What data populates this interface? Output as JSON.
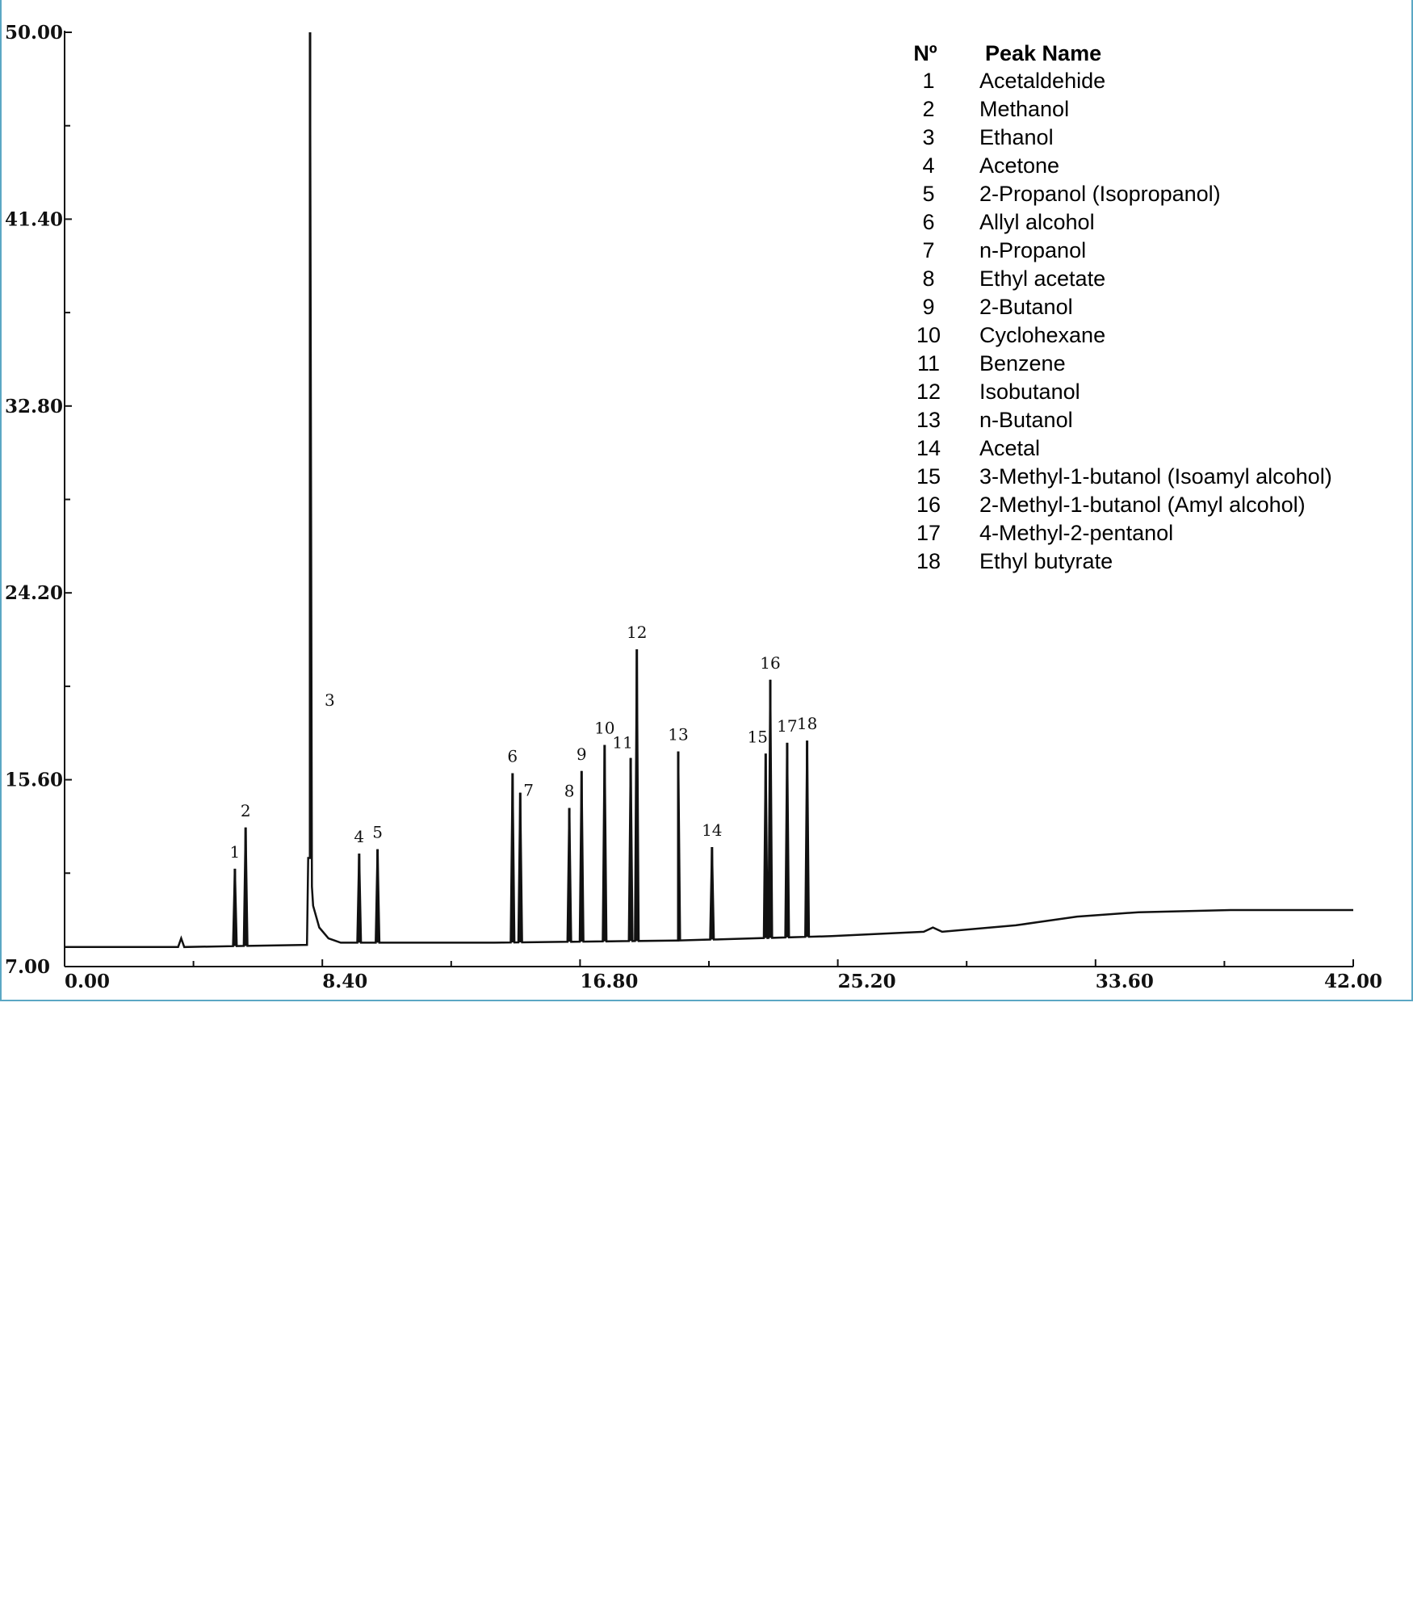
{
  "chart_data": {
    "type": "line",
    "title": "",
    "xlabel": "",
    "ylabel": "",
    "xlim": [
      0,
      42
    ],
    "ylim": [
      7,
      50
    ],
    "x_ticks": [
      "0.00",
      "8.40",
      "16.80",
      "25.20",
      "33.60",
      "42.00"
    ],
    "y_ticks": [
      "7.00",
      "15.60",
      "24.20",
      "32.80",
      "41.40",
      "50.00"
    ],
    "grid": false,
    "baseline": [
      {
        "x": 0.0,
        "y": 7.9
      },
      {
        "x": 3.7,
        "y": 7.9
      },
      {
        "x": 3.8,
        "y": 8.3
      },
      {
        "x": 3.9,
        "y": 7.9
      },
      {
        "x": 7.9,
        "y": 8.0
      },
      {
        "x": 8.0,
        "y": 12.0
      },
      {
        "x": 8.1,
        "y": 9.8
      },
      {
        "x": 8.3,
        "y": 8.8
      },
      {
        "x": 8.6,
        "y": 8.3
      },
      {
        "x": 9.0,
        "y": 8.1
      },
      {
        "x": 14.0,
        "y": 8.1
      },
      {
        "x": 20.0,
        "y": 8.2
      },
      {
        "x": 25.0,
        "y": 8.4
      },
      {
        "x": 28.0,
        "y": 8.6
      },
      {
        "x": 28.3,
        "y": 8.8
      },
      {
        "x": 28.6,
        "y": 8.6
      },
      {
        "x": 31.0,
        "y": 8.9
      },
      {
        "x": 33.0,
        "y": 9.3
      },
      {
        "x": 35.0,
        "y": 9.5
      },
      {
        "x": 38.0,
        "y": 9.6
      },
      {
        "x": 42.0,
        "y": 9.6
      }
    ],
    "peaks": [
      {
        "label": "1",
        "x": 5.55,
        "y": 11.5
      },
      {
        "label": "2",
        "x": 5.9,
        "y": 13.4
      },
      {
        "label": "3",
        "x": 8.0,
        "y": 50.0
      },
      {
        "label": "4",
        "x": 9.6,
        "y": 12.2
      },
      {
        "label": "5",
        "x": 10.2,
        "y": 12.4
      },
      {
        "label": "6",
        "x": 14.6,
        "y": 15.9
      },
      {
        "label": "7",
        "x": 14.85,
        "y": 15.0
      },
      {
        "label": "8",
        "x": 16.45,
        "y": 14.3
      },
      {
        "label": "9",
        "x": 16.85,
        "y": 16.0
      },
      {
        "label": "10",
        "x": 17.6,
        "y": 17.2
      },
      {
        "label": "11",
        "x": 18.45,
        "y": 16.6
      },
      {
        "label": "12",
        "x": 18.65,
        "y": 21.6
      },
      {
        "label": "13",
        "x": 20.0,
        "y": 16.9
      },
      {
        "label": "14",
        "x": 21.1,
        "y": 12.5
      },
      {
        "label": "15",
        "x": 22.85,
        "y": 16.8
      },
      {
        "label": "16",
        "x": 23.0,
        "y": 20.2
      },
      {
        "label": "17",
        "x": 23.55,
        "y": 17.3
      },
      {
        "label": "18",
        "x": 24.2,
        "y": 17.4
      }
    ]
  },
  "legend": {
    "header_num": "Nº",
    "header_name": "Peak Name",
    "entries": [
      {
        "num": "1",
        "name": "Acetaldehide"
      },
      {
        "num": "2",
        "name": "Methanol"
      },
      {
        "num": "3",
        "name": "Ethanol"
      },
      {
        "num": "4",
        "name": "Acetone"
      },
      {
        "num": "5",
        "name": "2-Propanol (Isopropanol)"
      },
      {
        "num": "6",
        "name": "Allyl alcohol"
      },
      {
        "num": "7",
        "name": "n-Propanol"
      },
      {
        "num": "8",
        "name": "Ethyl acetate"
      },
      {
        "num": "9",
        "name": "2-Butanol"
      },
      {
        "num": "10",
        "name": "Cyclohexane"
      },
      {
        "num": "11",
        "name": "Benzene"
      },
      {
        "num": "12",
        "name": "Isobutanol"
      },
      {
        "num": "13",
        "name": "n-Butanol"
      },
      {
        "num": "14",
        "name": "Acetal"
      },
      {
        "num": "15",
        "name": "3-Methyl-1-butanol (Isoamyl alcohol)"
      },
      {
        "num": "16",
        "name": "2-Methyl-1-butanol (Amyl alcohol)"
      },
      {
        "num": "17",
        "name": "4-Methyl-2-pentanol"
      },
      {
        "num": "18",
        "name": "Ethyl butyrate"
      }
    ]
  },
  "colors": {
    "trace": "#111111",
    "frame": "#5ba7c4"
  }
}
